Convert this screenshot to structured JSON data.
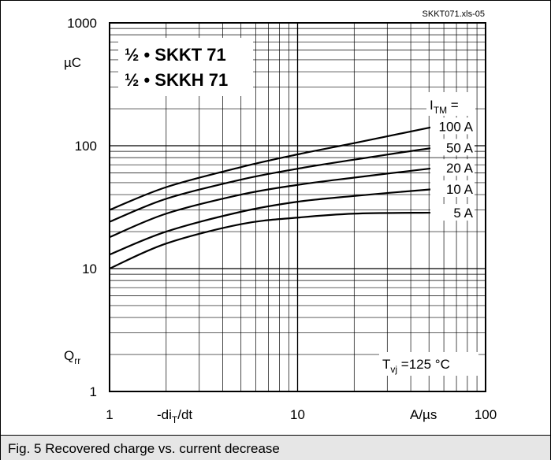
{
  "file_ref": "SKKT071.xls-05",
  "caption": "Fig. 5 Recovered charge vs. current decrease",
  "chart_data": {
    "type": "line",
    "title_lines": [
      "½ • SKKT 71",
      "½ • SKKH 71"
    ],
    "x_scale": "log",
    "y_scale": "log",
    "xlim": [
      1,
      100
    ],
    "ylim": [
      1,
      1000
    ],
    "x_ticks": [
      {
        "value": 1,
        "label": "1"
      },
      {
        "value": 10,
        "label": "10"
      },
      {
        "value": 100,
        "label": "100"
      }
    ],
    "y_ticks": [
      {
        "value": 1,
        "label": "1"
      },
      {
        "value": 10,
        "label": "10"
      },
      {
        "value": 100,
        "label": "100"
      },
      {
        "value": 1000,
        "label": "1000"
      }
    ],
    "xlabel": {
      "main": "-di",
      "sub": "T",
      "suffix": "/dt"
    },
    "x_unit": "A/µs",
    "ylabel": {
      "main": "Q",
      "sub": "rr"
    },
    "y_unit": "µC",
    "legend_title": {
      "main": "I",
      "sub": "TM",
      "suffix": " ="
    },
    "condition": {
      "main": "T",
      "sub": "vj",
      "suffix": " =125 °C"
    },
    "grid": true,
    "series": [
      {
        "name": "100 A",
        "x": [
          1,
          2,
          5,
          10,
          20,
          50,
          80
        ],
        "y": [
          30,
          46,
          67,
          85,
          105,
          140,
          160
        ]
      },
      {
        "name": "50 A",
        "x": [
          1,
          2,
          5,
          10,
          20,
          50,
          80
        ],
        "y": [
          24,
          37,
          53,
          65,
          77,
          95,
          103
        ]
      },
      {
        "name": "20 A",
        "x": [
          1,
          2,
          5,
          10,
          20,
          50,
          80
        ],
        "y": [
          18,
          28,
          40,
          48,
          55,
          65,
          70
        ]
      },
      {
        "name": "10 A",
        "x": [
          1,
          2,
          5,
          10,
          20,
          50,
          80
        ],
        "y": [
          13,
          20,
          29,
          35,
          39,
          44,
          46
        ]
      },
      {
        "name": "5 A",
        "x": [
          1,
          2,
          5,
          10,
          20,
          50,
          80
        ],
        "y": [
          10,
          16,
          23,
          26,
          28,
          28.5,
          28.5
        ]
      }
    ]
  }
}
